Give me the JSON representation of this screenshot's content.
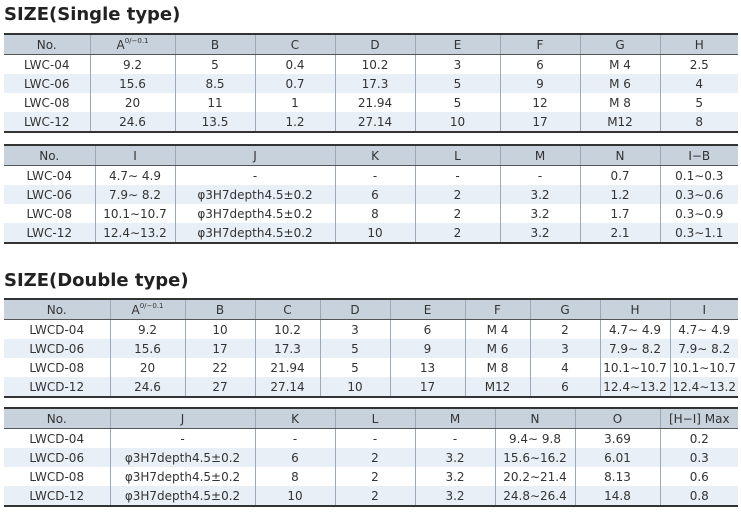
{
  "sections": [
    {
      "title": "SIZE(Single type)",
      "tables": [
        {
          "headers": [
            "No.",
            {
              "text": "A",
              "superscript": "0/−0.1"
            },
            "B",
            "C",
            "D",
            "E",
            "F",
            "G",
            "H"
          ],
          "rows": [
            [
              "LWC-04",
              "9.2",
              "5",
              "0.4",
              "10.2",
              "3",
              "6",
              "M 4",
              "2.5"
            ],
            [
              "LWC-06",
              "15.6",
              "8.5",
              "0.7",
              "17.3",
              "5",
              "9",
              "M 6",
              "4"
            ],
            [
              "LWC-08",
              "20",
              "11",
              "1",
              "21.94",
              "5",
              "12",
              "M 8",
              "5"
            ],
            [
              "LWC-12",
              "24.6",
              "13.5",
              "1.2",
              "27.14",
              "10",
              "17",
              "M12",
              "8"
            ]
          ]
        },
        {
          "headers": [
            "No.",
            "I",
            "J",
            "K",
            "L",
            "M",
            "N",
            "I−B"
          ],
          "rows": [
            [
              "LWC-04",
              "4.7∼ 4.9",
              "-",
              "-",
              "-",
              "-",
              "0.7",
              "0.1∼0.3"
            ],
            [
              "LWC-06",
              "7.9∼ 8.2",
              "φ3H7depth4.5±0.2",
              "6",
              "2",
              "3.2",
              "1.2",
              "0.3∼0.6"
            ],
            [
              "LWC-08",
              "10.1∼10.7",
              "φ3H7depth4.5±0.2",
              "8",
              "2",
              "3.2",
              "1.7",
              "0.3∼0.9"
            ],
            [
              "LWC-12",
              "12.4∼13.2",
              "φ3H7depth4.5±0.2",
              "10",
              "2",
              "3.2",
              "2.1",
              "0.3∼1.1"
            ]
          ]
        }
      ]
    },
    {
      "title": "SIZE(Double type)",
      "tables": [
        {
          "headers": [
            "No.",
            {
              "text": "A",
              "superscript": "0/−0.1"
            },
            "B",
            "C",
            "D",
            "E",
            "F",
            "G",
            "H",
            "I"
          ],
          "rows": [
            [
              "LWCD-04",
              "9.2",
              "10",
              "10.2",
              "3",
              "6",
              "M 4",
              "2",
              "4.7∼ 4.9",
              "4.7∼ 4.9"
            ],
            [
              "LWCD-06",
              "15.6",
              "17",
              "17.3",
              "5",
              "9",
              "M 6",
              "3",
              "7.9∼ 8.2",
              "7.9∼ 8.2"
            ],
            [
              "LWCD-08",
              "20",
              "22",
              "21.94",
              "5",
              "13",
              "M 8",
              "4",
              "10.1∼10.7",
              "10.1∼10.7"
            ],
            [
              "LWCD-12",
              "24.6",
              "27",
              "27.14",
              "10",
              "17",
              "M12",
              "6",
              "12.4∼13.2",
              "12.4∼13.2"
            ]
          ]
        },
        {
          "headers": [
            "No.",
            "J",
            "K",
            "L",
            "M",
            "N",
            "O",
            "[H−I] Max"
          ],
          "rows": [
            [
              "LWCD-04",
              "-",
              "-",
              "-",
              "-",
              "9.4∼ 9.8",
              "3.69",
              "0.2"
            ],
            [
              "LWCD-06",
              "φ3H7depth4.5±0.2",
              "6",
              "2",
              "3.2",
              "15.6∼16.2",
              "6.01",
              "0.3"
            ],
            [
              "LWCD-08",
              "φ3H7depth4.5±0.2",
              "8",
              "2",
              "3.2",
              "20.2∼21.4",
              "8.13",
              "0.6"
            ],
            [
              "LWCD-12",
              "φ3H7depth4.5±0.2",
              "10",
              "2",
              "3.2",
              "24.8∼26.4",
              "14.8",
              "0.8"
            ]
          ]
        }
      ]
    }
  ]
}
